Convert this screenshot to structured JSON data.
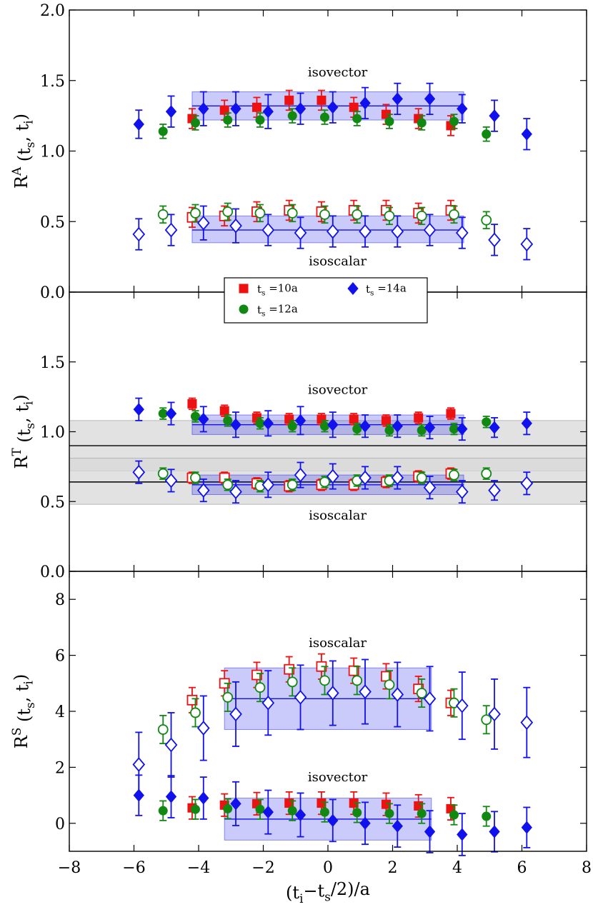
{
  "chart_data": {
    "type": "scatter",
    "shared_x": {
      "label": "(t_i−t_s/2)/a",
      "xlim": [
        -8,
        8
      ],
      "ticks": [
        -8,
        -6,
        -4,
        -2,
        0,
        2,
        4,
        6,
        8
      ]
    },
    "legend": {
      "placement": "top-center of middle panel",
      "entries": [
        {
          "label": "t_s =10a",
          "color": "#ee1111",
          "marker": "square"
        },
        {
          "label": "t_s =12a",
          "color": "#118811",
          "marker": "circle"
        },
        {
          "label": "t_s =14a",
          "color": "#1111ee",
          "marker": "diamond"
        }
      ]
    },
    "panels": [
      {
        "ylabel": "R^A (t_s, t_i)",
        "ylim": [
          0,
          2
        ],
        "yticks": [
          0.0,
          0.5,
          1.0,
          1.5,
          2.0
        ],
        "tick_format": "fixed1",
        "annotations": [
          {
            "text": "isovector",
            "x": 0.3,
            "y": 1.53
          },
          {
            "text": "isoscalar",
            "x": 0.3,
            "y": 0.19
          }
        ],
        "bands": [
          {
            "color": "#1111ee",
            "x": [
              -4.2,
              4.2
            ],
            "center": 1.32,
            "low": 1.22,
            "high": 1.42
          },
          {
            "color": "#1111ee",
            "x": [
              -4.2,
              4.2
            ],
            "center": 0.44,
            "low": 0.35,
            "high": 0.54
          }
        ],
        "series": [
          {
            "name": "t_s =10a isovector",
            "color": "#ee1111",
            "marker": "square",
            "filled": true,
            "x": [
              -4,
              -3,
              -2,
              -1,
              0,
              1,
              2,
              3,
              4
            ],
            "y": [
              1.23,
              1.29,
              1.31,
              1.36,
              1.36,
              1.31,
              1.26,
              1.23,
              1.18
            ],
            "err": [
              0.07,
              0.07,
              0.07,
              0.07,
              0.07,
              0.07,
              0.07,
              0.07,
              0.07
            ]
          },
          {
            "name": "t_s =12a isovector",
            "color": "#118811",
            "marker": "circle",
            "filled": true,
            "x": [
              -5,
              -4,
              -3,
              -2,
              -1,
              0,
              1,
              2,
              3,
              4,
              5
            ],
            "y": [
              1.14,
              1.2,
              1.22,
              1.22,
              1.25,
              1.24,
              1.23,
              1.21,
              1.2,
              1.21,
              1.12
            ],
            "err": [
              0.05,
              0.05,
              0.05,
              0.05,
              0.05,
              0.05,
              0.05,
              0.05,
              0.05,
              0.05,
              0.05
            ]
          },
          {
            "name": "t_s =14a isovector",
            "color": "#1111ee",
            "marker": "diamond",
            "filled": true,
            "x": [
              -6,
              -5,
              -4,
              -3,
              -2,
              -1,
              0,
              1,
              2,
              3,
              4,
              5,
              6
            ],
            "y": [
              1.19,
              1.28,
              1.3,
              1.3,
              1.28,
              1.3,
              1.31,
              1.34,
              1.37,
              1.37,
              1.3,
              1.25,
              1.12
            ],
            "err": [
              0.1,
              0.11,
              0.12,
              0.12,
              0.12,
              0.11,
              0.11,
              0.11,
              0.11,
              0.11,
              0.1,
              0.11,
              0.11
            ]
          },
          {
            "name": "t_s =10a isoscalar",
            "color": "#ee1111",
            "marker": "square",
            "filled": false,
            "x": [
              -4,
              -3,
              -2,
              -1,
              0,
              1,
              2,
              3,
              4
            ],
            "y": [
              0.53,
              0.54,
              0.57,
              0.58,
              0.57,
              0.58,
              0.58,
              0.56,
              0.58
            ],
            "err": [
              0.07,
              0.07,
              0.07,
              0.07,
              0.07,
              0.07,
              0.07,
              0.07,
              0.07
            ]
          },
          {
            "name": "t_s =12a isoscalar",
            "color": "#118811",
            "marker": "circle",
            "filled": false,
            "x": [
              -5,
              -4,
              -3,
              -2,
              -1,
              0,
              1,
              2,
              3,
              4,
              5
            ],
            "y": [
              0.55,
              0.56,
              0.57,
              0.56,
              0.56,
              0.55,
              0.55,
              0.54,
              0.54,
              0.55,
              0.51
            ],
            "err": [
              0.06,
              0.06,
              0.06,
              0.06,
              0.06,
              0.06,
              0.06,
              0.06,
              0.06,
              0.06,
              0.06
            ]
          },
          {
            "name": "t_s =14a isoscalar",
            "color": "#1111ee",
            "marker": "diamond",
            "filled": false,
            "x": [
              -6,
              -5,
              -4,
              -3,
              -2,
              -1,
              0,
              1,
              2,
              3,
              4,
              5,
              6
            ],
            "y": [
              0.41,
              0.44,
              0.49,
              0.47,
              0.44,
              0.42,
              0.43,
              0.43,
              0.43,
              0.44,
              0.42,
              0.37,
              0.34
            ],
            "err": [
              0.11,
              0.11,
              0.12,
              0.12,
              0.11,
              0.11,
              0.11,
              0.11,
              0.11,
              0.11,
              0.11,
              0.11,
              0.11
            ]
          }
        ]
      },
      {
        "ylabel": "R^T (t_s, t_i)",
        "ylim": [
          0,
          2
        ],
        "yticks": [
          0.0,
          0.5,
          1.0,
          1.5
        ],
        "tick_format": "fixed1",
        "annotations": [
          {
            "text": "isovector",
            "x": 0.3,
            "y": 1.27
          },
          {
            "text": "isoscalar",
            "x": 0.3,
            "y": 0.37
          }
        ],
        "reference_bands": [
          {
            "color": "#d8d8d8",
            "center": 0.9,
            "low": 0.72,
            "high": 1.08
          },
          {
            "color": "#d8d8d8",
            "center": 0.64,
            "low": 0.48,
            "high": 0.81
          }
        ],
        "bands": [
          {
            "color": "#1111ee",
            "x": [
              -4.2,
              4.2
            ],
            "center": 1.05,
            "low": 0.98,
            "high": 1.12
          },
          {
            "color": "#1111ee",
            "x": [
              -4.2,
              4.2
            ],
            "center": 0.62,
            "low": 0.55,
            "high": 0.69
          }
        ],
        "series": [
          {
            "name": "t_s =10a isovector",
            "color": "#ee1111",
            "marker": "square",
            "filled": true,
            "x": [
              -4,
              -3,
              -2,
              -1,
              0,
              1,
              2,
              3,
              4
            ],
            "y": [
              1.2,
              1.15,
              1.1,
              1.09,
              1.09,
              1.09,
              1.08,
              1.1,
              1.13
            ],
            "err": [
              0.04,
              0.04,
              0.04,
              0.04,
              0.04,
              0.04,
              0.04,
              0.04,
              0.04
            ]
          },
          {
            "name": "t_s =12a isovector",
            "color": "#118811",
            "marker": "circle",
            "filled": true,
            "x": [
              -5,
              -4,
              -3,
              -2,
              -1,
              0,
              1,
              2,
              3,
              4,
              5
            ],
            "y": [
              1.13,
              1.11,
              1.08,
              1.06,
              1.04,
              1.04,
              1.02,
              1.01,
              1.01,
              1.02,
              1.07
            ],
            "err": [
              0.04,
              0.04,
              0.04,
              0.04,
              0.04,
              0.04,
              0.04,
              0.04,
              0.04,
              0.04,
              0.04
            ]
          },
          {
            "name": "t_s =14a isovector",
            "color": "#1111ee",
            "marker": "diamond",
            "filled": true,
            "x": [
              -6,
              -5,
              -4,
              -3,
              -2,
              -1,
              0,
              1,
              2,
              3,
              4,
              5,
              6
            ],
            "y": [
              1.16,
              1.13,
              1.09,
              1.05,
              1.06,
              1.08,
              1.05,
              1.04,
              1.04,
              1.03,
              1.02,
              1.03,
              1.06
            ],
            "err": [
              0.08,
              0.08,
              0.09,
              0.09,
              0.09,
              0.1,
              0.09,
              0.08,
              0.08,
              0.08,
              0.08,
              0.07,
              0.08
            ]
          },
          {
            "name": "t_s =10a isoscalar",
            "color": "#ee1111",
            "marker": "square",
            "filled": false,
            "x": [
              -4,
              -3,
              -2,
              -1,
              0,
              1,
              2,
              3,
              4
            ],
            "y": [
              0.67,
              0.67,
              0.63,
              0.61,
              0.62,
              0.62,
              0.64,
              0.68,
              0.7
            ],
            "err": [
              0.04,
              0.04,
              0.04,
              0.04,
              0.04,
              0.04,
              0.04,
              0.04,
              0.04
            ]
          },
          {
            "name": "t_s =12a isoscalar",
            "color": "#118811",
            "marker": "circle",
            "filled": false,
            "x": [
              -5,
              -4,
              -3,
              -2,
              -1,
              0,
              1,
              2,
              3,
              4,
              5
            ],
            "y": [
              0.7,
              0.67,
              0.62,
              0.61,
              0.62,
              0.64,
              0.65,
              0.65,
              0.67,
              0.69,
              0.7
            ],
            "err": [
              0.04,
              0.04,
              0.04,
              0.04,
              0.04,
              0.04,
              0.04,
              0.04,
              0.04,
              0.04,
              0.04
            ]
          },
          {
            "name": "t_s =14a isoscalar",
            "color": "#1111ee",
            "marker": "diamond",
            "filled": false,
            "x": [
              -6,
              -5,
              -4,
              -3,
              -2,
              -1,
              0,
              1,
              2,
              3,
              4,
              5,
              6
            ],
            "y": [
              0.71,
              0.65,
              0.58,
              0.57,
              0.62,
              0.69,
              0.68,
              0.67,
              0.67,
              0.6,
              0.57,
              0.58,
              0.63
            ],
            "err": [
              0.08,
              0.08,
              0.08,
              0.08,
              0.09,
              0.09,
              0.09,
              0.08,
              0.08,
              0.08,
              0.08,
              0.07,
              0.08
            ]
          }
        ]
      },
      {
        "ylabel": "R^S (t_s, t_i)",
        "ylim": [
          -1,
          9
        ],
        "yticks": [
          0,
          2,
          4,
          6,
          8
        ],
        "tick_format": "int",
        "annotations": [
          {
            "text": "isoscalar",
            "x": 0.3,
            "y": 6.3
          },
          {
            "text": "isovector",
            "x": 0.3,
            "y": 1.5
          }
        ],
        "bands": [
          {
            "color": "#1111ee",
            "x": [
              -3.2,
              3.2
            ],
            "center": 4.45,
            "low": 3.35,
            "high": 5.55
          },
          {
            "color": "#1111ee",
            "x": [
              -3.2,
              3.2
            ],
            "center": 0.15,
            "low": -0.6,
            "high": 0.9
          }
        ],
        "series": [
          {
            "name": "t_s =10a isoscalar",
            "color": "#ee1111",
            "marker": "square",
            "filled": false,
            "x": [
              -4,
              -3,
              -2,
              -1,
              0,
              1,
              2,
              3,
              4
            ],
            "y": [
              4.4,
              5.0,
              5.3,
              5.5,
              5.6,
              5.45,
              5.25,
              4.8,
              4.3
            ],
            "err": [
              0.45,
              0.45,
              0.45,
              0.45,
              0.45,
              0.45,
              0.45,
              0.45,
              0.45
            ]
          },
          {
            "name": "t_s =12a isoscalar",
            "color": "#118811",
            "marker": "circle",
            "filled": false,
            "x": [
              -5,
              -4,
              -3,
              -2,
              -1,
              0,
              1,
              2,
              3,
              4,
              5
            ],
            "y": [
              3.35,
              3.95,
              4.5,
              4.85,
              5.05,
              5.1,
              5.1,
              4.95,
              4.65,
              4.3,
              3.7
            ],
            "err": [
              0.5,
              0.5,
              0.5,
              0.5,
              0.5,
              0.5,
              0.5,
              0.5,
              0.5,
              0.5,
              0.5
            ]
          },
          {
            "name": "t_s =14a isoscalar",
            "color": "#1111ee",
            "marker": "diamond",
            "filled": false,
            "x": [
              -6,
              -5,
              -4,
              -3,
              -2,
              -1,
              0,
              1,
              2,
              3,
              4,
              5,
              6
            ],
            "y": [
              2.1,
              2.8,
              3.4,
              3.9,
              4.3,
              4.5,
              4.65,
              4.7,
              4.6,
              4.45,
              4.2,
              3.9,
              3.6
            ],
            "err": [
              1.15,
              1.15,
              1.15,
              1.15,
              1.15,
              1.15,
              1.15,
              1.15,
              1.15,
              1.15,
              1.2,
              1.25,
              1.25
            ]
          },
          {
            "name": "t_s =10a isovector",
            "color": "#ee1111",
            "marker": "square",
            "filled": true,
            "x": [
              -4,
              -3,
              -2,
              -1,
              0,
              1,
              2,
              3,
              4
            ],
            "y": [
              0.55,
              0.65,
              0.7,
              0.72,
              0.72,
              0.72,
              0.68,
              0.62,
              0.52
            ],
            "err": [
              0.4,
              0.4,
              0.4,
              0.4,
              0.4,
              0.4,
              0.4,
              0.4,
              0.4
            ]
          },
          {
            "name": "t_s =12a isovector",
            "color": "#118811",
            "marker": "circle",
            "filled": true,
            "x": [
              -5,
              -4,
              -3,
              -2,
              -1,
              0,
              1,
              2,
              3,
              4,
              5
            ],
            "y": [
              0.45,
              0.5,
              0.52,
              0.5,
              0.45,
              0.4,
              0.38,
              0.35,
              0.35,
              0.3,
              0.25
            ],
            "err": [
              0.35,
              0.35,
              0.35,
              0.35,
              0.35,
              0.35,
              0.35,
              0.35,
              0.35,
              0.35,
              0.35
            ]
          },
          {
            "name": "t_s =14a isovector",
            "color": "#1111ee",
            "marker": "diamond",
            "filled": true,
            "x": [
              -6,
              -5,
              -4,
              -3,
              -2,
              -1,
              0,
              1,
              2,
              3,
              4,
              5,
              6
            ],
            "y": [
              1.0,
              0.95,
              0.9,
              0.7,
              0.4,
              0.3,
              0.1,
              0.0,
              -0.1,
              -0.3,
              -0.4,
              -0.3,
              -0.15
            ],
            "err": [
              0.72,
              0.75,
              0.75,
              0.78,
              0.78,
              0.78,
              0.75,
              0.75,
              0.75,
              0.75,
              0.75,
              0.72,
              0.72
            ]
          }
        ]
      }
    ]
  }
}
